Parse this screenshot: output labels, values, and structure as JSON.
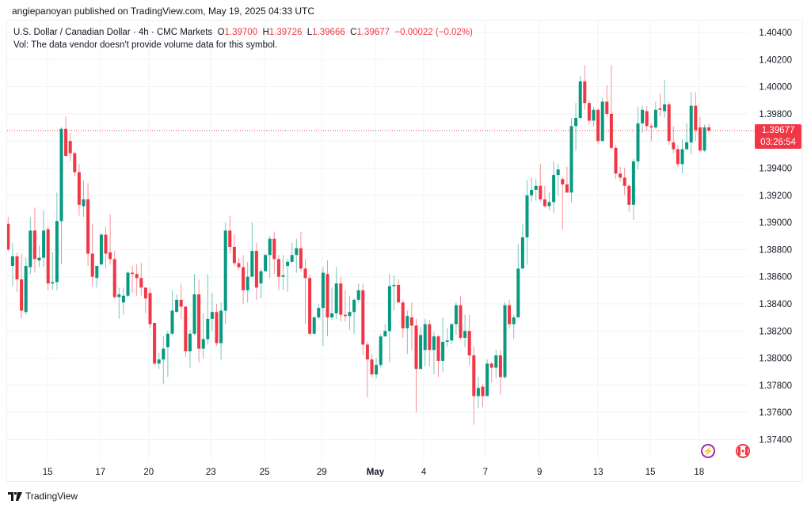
{
  "publish_line": "angiepanoyan published on TradingView.com, May 19, 2025 04:33 UTC",
  "legend": {
    "symbol": "U.S. Dollar / Canadian Dollar · 4h · CMC Markets",
    "o_label": "O",
    "o_value": "1.39700",
    "h_label": "H",
    "h_value": "1.39726",
    "l_label": "L",
    "l_value": "1.39666",
    "c_label": "C",
    "c_value": "1.39677",
    "change": "−0.00022 (−0.02%)",
    "vol": "Vol: The data vendor doesn't provide volume data for this symbol."
  },
  "price_tag": {
    "price": "1.39677",
    "countdown": "03:26:54"
  },
  "footer": {
    "brand": "TradingView"
  },
  "icons": {
    "events": "lightning-icon",
    "country": "canada-flag-icon"
  },
  "colors": {
    "up": "#089981",
    "down": "#f23645",
    "accent_purple": "#9c27b0"
  },
  "chart_data": {
    "type": "candlestick",
    "title": "U.S. Dollar / Canadian Dollar · 4h · CMC Markets",
    "ylim": [
      1.373,
      1.405
    ],
    "yticks": [
      "1.40400",
      "1.40200",
      "1.40000",
      "1.39800",
      "1.39400",
      "1.39200",
      "1.39000",
      "1.38800",
      "1.38600",
      "1.38400",
      "1.38200",
      "1.38000",
      "1.37800",
      "1.37600",
      "1.37400"
    ],
    "ytick_values": [
      1.404,
      1.402,
      1.4,
      1.398,
      1.394,
      1.392,
      1.39,
      1.388,
      1.386,
      1.384,
      1.382,
      1.38,
      1.378,
      1.376,
      1.374
    ],
    "xticks": [
      {
        "label": "15",
        "bar": 8.9
      },
      {
        "label": "17",
        "bar": 20.8
      },
      {
        "label": "20",
        "bar": 31.7
      },
      {
        "label": "23",
        "bar": 45.7
      },
      {
        "label": "25",
        "bar": 57.8
      },
      {
        "label": "29",
        "bar": 70.7
      },
      {
        "label": "May",
        "bar": 82.8,
        "bold": true
      },
      {
        "label": "4",
        "bar": 93.7
      },
      {
        "label": "7",
        "bar": 107.6
      },
      {
        "label": "9",
        "bar": 119.8
      },
      {
        "label": "13",
        "bar": 133
      },
      {
        "label": "15",
        "bar": 144.8
      },
      {
        "label": "18",
        "bar": 155.8
      }
    ],
    "last_price": 1.39677,
    "grid": true,
    "ohlc_columns": [
      "open",
      "high",
      "low",
      "close"
    ],
    "ohlc": [
      [
        1.3899,
        1.3904,
        1.3879,
        1.388
      ],
      [
        1.3868,
        1.3885,
        1.3853,
        1.3875
      ],
      [
        1.3875,
        1.3878,
        1.3849,
        1.3858
      ],
      [
        1.3858,
        1.3877,
        1.3829,
        1.3835
      ],
      [
        1.3834,
        1.3874,
        1.3832,
        1.3868
      ],
      [
        1.3867,
        1.3904,
        1.3862,
        1.3894
      ],
      [
        1.3894,
        1.3911,
        1.3863,
        1.3873
      ],
      [
        1.3872,
        1.3883,
        1.3867,
        1.3874
      ],
      [
        1.3874,
        1.3909,
        1.3867,
        1.3894
      ],
      [
        1.3895,
        1.3897,
        1.385,
        1.3855
      ],
      [
        1.3855,
        1.3878,
        1.385,
        1.3856
      ],
      [
        1.3856,
        1.3922,
        1.385,
        1.3901
      ],
      [
        1.3901,
        1.397,
        1.3869,
        1.3969
      ],
      [
        1.3969,
        1.3978,
        1.3949,
        1.3949
      ],
      [
        1.396,
        1.3966,
        1.3945,
        1.3951
      ],
      [
        1.3951,
        1.3952,
        1.3934,
        1.3937
      ],
      [
        1.3937,
        1.3943,
        1.3905,
        1.3913
      ],
      [
        1.3912,
        1.3931,
        1.3904,
        1.3917
      ],
      [
        1.3917,
        1.3929,
        1.3868,
        1.3877
      ],
      [
        1.3877,
        1.3899,
        1.3853,
        1.386
      ],
      [
        1.3859,
        1.3868,
        1.3852,
        1.3868
      ],
      [
        1.3869,
        1.3892,
        1.3869,
        1.3891
      ],
      [
        1.3891,
        1.3897,
        1.3866,
        1.3877
      ],
      [
        1.3878,
        1.3906,
        1.3869,
        1.3873
      ],
      [
        1.3873,
        1.3879,
        1.3844,
        1.3845
      ],
      [
        1.3845,
        1.3852,
        1.3829,
        1.3847
      ],
      [
        1.3841,
        1.3852,
        1.3832,
        1.3846
      ],
      [
        1.3846,
        1.3864,
        1.3845,
        1.3863
      ],
      [
        1.3863,
        1.3868,
        1.3848,
        1.3862
      ],
      [
        1.3862,
        1.3869,
        1.3846,
        1.3859
      ],
      [
        1.3859,
        1.387,
        1.3846,
        1.3852
      ],
      [
        1.3852,
        1.3852,
        1.3833,
        1.3844
      ],
      [
        1.3848,
        1.3852,
        1.3822,
        1.3825
      ],
      [
        1.3826,
        1.3826,
        1.3795,
        1.3796
      ],
      [
        1.3796,
        1.3804,
        1.3792,
        1.3799
      ],
      [
        1.3799,
        1.3816,
        1.3781,
        1.3807
      ],
      [
        1.3808,
        1.382,
        1.3786,
        1.3818
      ],
      [
        1.3818,
        1.385,
        1.3817,
        1.3835
      ],
      [
        1.3834,
        1.3847,
        1.3834,
        1.3843
      ],
      [
        1.3843,
        1.3855,
        1.3829,
        1.3838
      ],
      [
        1.3838,
        1.3838,
        1.3801,
        1.3805
      ],
      [
        1.3805,
        1.3821,
        1.3793,
        1.3818
      ],
      [
        1.3818,
        1.3862,
        1.3817,
        1.3847
      ],
      [
        1.3847,
        1.3858,
        1.3797,
        1.3807
      ],
      [
        1.3807,
        1.3833,
        1.38,
        1.3814
      ],
      [
        1.3814,
        1.3862,
        1.381,
        1.3829
      ],
      [
        1.3829,
        1.3848,
        1.382,
        1.3834
      ],
      [
        1.3834,
        1.384,
        1.3809,
        1.3811
      ],
      [
        1.3811,
        1.3841,
        1.3799,
        1.3835
      ],
      [
        1.3835,
        1.39,
        1.3825,
        1.3894
      ],
      [
        1.3894,
        1.3905,
        1.3877,
        1.3882
      ],
      [
        1.3882,
        1.3891,
        1.3868,
        1.387
      ],
      [
        1.387,
        1.3874,
        1.3865,
        1.3867
      ],
      [
        1.3867,
        1.3876,
        1.384,
        1.385
      ],
      [
        1.385,
        1.3871,
        1.3841,
        1.386
      ],
      [
        1.386,
        1.39,
        1.386,
        1.3879
      ],
      [
        1.3879,
        1.3885,
        1.3843,
        1.3852
      ],
      [
        1.3855,
        1.3866,
        1.3844,
        1.3864
      ],
      [
        1.3864,
        1.3877,
        1.3864,
        1.3876
      ],
      [
        1.3876,
        1.389,
        1.3859,
        1.3888
      ],
      [
        1.3888,
        1.3893,
        1.3862,
        1.3873
      ],
      [
        1.3873,
        1.3876,
        1.385,
        1.386
      ],
      [
        1.386,
        1.3876,
        1.385,
        1.3861
      ],
      [
        1.3868,
        1.3873,
        1.3849,
        1.3871
      ],
      [
        1.3871,
        1.3885,
        1.387,
        1.3876
      ],
      [
        1.3876,
        1.3888,
        1.3863,
        1.3881
      ],
      [
        1.3881,
        1.3893,
        1.3864,
        1.3866
      ],
      [
        1.3866,
        1.3873,
        1.3825,
        1.3859
      ],
      [
        1.3859,
        1.3862,
        1.3817,
        1.3818
      ],
      [
        1.3818,
        1.3831,
        1.3817,
        1.383
      ],
      [
        1.383,
        1.384,
        1.3829,
        1.3837
      ],
      [
        1.3837,
        1.3867,
        1.3809,
        1.3863
      ],
      [
        1.3862,
        1.3872,
        1.3816,
        1.383
      ],
      [
        1.383,
        1.3852,
        1.3828,
        1.3833
      ],
      [
        1.3833,
        1.3867,
        1.3829,
        1.3855
      ],
      [
        1.3855,
        1.386,
        1.3827,
        1.3832
      ],
      [
        1.3832,
        1.385,
        1.3827,
        1.3831
      ],
      [
        1.3831,
        1.3846,
        1.3821,
        1.3834
      ],
      [
        1.3834,
        1.3844,
        1.3818,
        1.3843
      ],
      [
        1.3843,
        1.3855,
        1.3841,
        1.385
      ],
      [
        1.385,
        1.3855,
        1.3803,
        1.381
      ],
      [
        1.381,
        1.3812,
        1.3771,
        1.3799
      ],
      [
        1.3799,
        1.3803,
        1.3786,
        1.3788
      ],
      [
        1.3788,
        1.38,
        1.3785,
        1.3795
      ],
      [
        1.3795,
        1.3818,
        1.3793,
        1.3816
      ],
      [
        1.3816,
        1.3825,
        1.3816,
        1.382
      ],
      [
        1.382,
        1.3862,
        1.3797,
        1.3853
      ],
      [
        1.3853,
        1.3861,
        1.3835,
        1.3854
      ],
      [
        1.3854,
        1.3858,
        1.3841,
        1.3841
      ],
      [
        1.3841,
        1.3843,
        1.3815,
        1.3822
      ],
      [
        1.3822,
        1.3835,
        1.3803,
        1.3831
      ],
      [
        1.383,
        1.3841,
        1.3806,
        1.3824
      ],
      [
        1.3824,
        1.3829,
        1.376,
        1.3792
      ],
      [
        1.3792,
        1.3823,
        1.3792,
        1.3817
      ],
      [
        1.3806,
        1.3829,
        1.3794,
        1.3825
      ],
      [
        1.3825,
        1.3828,
        1.3794,
        1.3806
      ],
      [
        1.3806,
        1.3819,
        1.3788,
        1.3816
      ],
      [
        1.3816,
        1.3817,
        1.3786,
        1.3798
      ],
      [
        1.3798,
        1.383,
        1.379,
        1.3812
      ],
      [
        1.3812,
        1.3822,
        1.3808,
        1.3813
      ],
      [
        1.3813,
        1.3826,
        1.381,
        1.3825
      ],
      [
        1.3825,
        1.3841,
        1.3817,
        1.3839
      ],
      [
        1.3839,
        1.3846,
        1.3814,
        1.3815
      ],
      [
        1.3815,
        1.3832,
        1.3808,
        1.382
      ],
      [
        1.382,
        1.3832,
        1.3795,
        1.3802
      ],
      [
        1.3802,
        1.3809,
        1.3751,
        1.3772
      ],
      [
        1.3772,
        1.3786,
        1.3763,
        1.3778
      ],
      [
        1.3779,
        1.3781,
        1.3764,
        1.3772
      ],
      [
        1.3772,
        1.3799,
        1.3772,
        1.3796
      ],
      [
        1.3796,
        1.3797,
        1.3782,
        1.3793
      ],
      [
        1.3793,
        1.3806,
        1.3785,
        1.3802
      ],
      [
        1.3802,
        1.3806,
        1.3773,
        1.3786
      ],
      [
        1.3786,
        1.3841,
        1.3785,
        1.3839
      ],
      [
        1.3839,
        1.3843,
        1.3822,
        1.3825
      ],
      [
        1.3825,
        1.3832,
        1.3814,
        1.383
      ],
      [
        1.383,
        1.3884,
        1.383,
        1.3866
      ],
      [
        1.3866,
        1.3899,
        1.3866,
        1.3889
      ],
      [
        1.3889,
        1.3931,
        1.3869,
        1.392
      ],
      [
        1.392,
        1.3933,
        1.3915,
        1.3924
      ],
      [
        1.3924,
        1.3932,
        1.3916,
        1.3927
      ],
      [
        1.3927,
        1.3943,
        1.3916,
        1.3917
      ],
      [
        1.3917,
        1.3927,
        1.3911,
        1.3912
      ],
      [
        1.3912,
        1.3922,
        1.3909,
        1.3915
      ],
      [
        1.3915,
        1.3945,
        1.3907,
        1.3935
      ],
      [
        1.3935,
        1.3943,
        1.392,
        1.3939
      ],
      [
        1.3932,
        1.3933,
        1.3895,
        1.3928
      ],
      [
        1.3928,
        1.3941,
        1.3922,
        1.3922
      ],
      [
        1.3922,
        1.3977,
        1.3915,
        1.3971
      ],
      [
        1.3971,
        1.3988,
        1.3953,
        1.3977
      ],
      [
        1.3977,
        1.4008,
        1.3976,
        1.4004
      ],
      [
        1.4004,
        1.4016,
        1.3983,
        1.3988
      ],
      [
        1.3988,
        1.399,
        1.3972,
        1.3975
      ],
      [
        1.3975,
        1.3985,
        1.3971,
        1.3983
      ],
      [
        1.3983,
        1.3984,
        1.3958,
        1.396
      ],
      [
        1.396,
        1.3992,
        1.396,
        1.3989
      ],
      [
        1.3989,
        1.4001,
        1.3978,
        1.398
      ],
      [
        1.398,
        1.4016,
        1.3954,
        1.3955
      ],
      [
        1.3955,
        1.3957,
        1.3932,
        1.3936
      ],
      [
        1.3936,
        1.3941,
        1.393,
        1.3933
      ],
      [
        1.3933,
        1.394,
        1.392,
        1.3927
      ],
      [
        1.3927,
        1.3928,
        1.3908,
        1.3913
      ],
      [
        1.3913,
        1.3947,
        1.3902,
        1.3945
      ],
      [
        1.3945,
        1.3985,
        1.3939,
        1.3973
      ],
      [
        1.3973,
        1.3986,
        1.3966,
        1.3983
      ],
      [
        1.3982,
        1.3986,
        1.3968,
        1.3971
      ],
      [
        1.3971,
        1.3973,
        1.396,
        1.397
      ],
      [
        1.397,
        1.3989,
        1.3969,
        1.3983
      ],
      [
        1.3984,
        1.3995,
        1.3978,
        1.3983
      ],
      [
        1.3982,
        1.4005,
        1.3977,
        1.3987
      ],
      [
        1.3987,
        1.3989,
        1.3957,
        1.396
      ],
      [
        1.3959,
        1.3971,
        1.3951,
        1.3954
      ],
      [
        1.3954,
        1.3957,
        1.3941,
        1.3943
      ],
      [
        1.3943,
        1.3961,
        1.3936,
        1.3954
      ],
      [
        1.3954,
        1.3973,
        1.3953,
        1.3959
      ],
      [
        1.3959,
        1.3996,
        1.395,
        1.3986
      ],
      [
        1.3986,
        1.3996,
        1.396,
        1.3968
      ],
      [
        1.397,
        1.3978,
        1.3952,
        1.3953
      ],
      [
        1.3953,
        1.3972,
        1.3952,
        1.397
      ],
      [
        1.397,
        1.39726,
        1.39666,
        1.39677
      ]
    ]
  }
}
